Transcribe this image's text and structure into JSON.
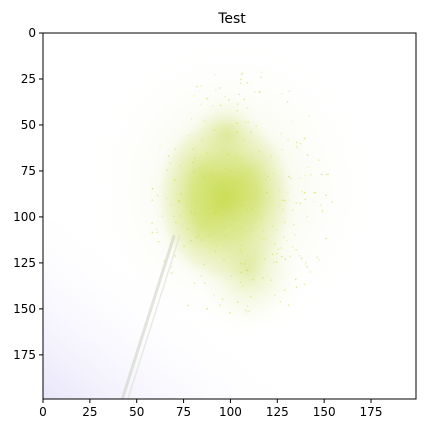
{
  "chart_data": {
    "type": "heatmap",
    "title": "Test",
    "xlabel": "",
    "ylabel": "",
    "image_width": 200,
    "image_height": 200,
    "xlim": [
      0,
      199
    ],
    "ylim": [
      199,
      0
    ],
    "y_inverted": true,
    "x_ticks": [
      0,
      25,
      50,
      75,
      100,
      125,
      150,
      175
    ],
    "y_ticks": [
      0,
      25,
      50,
      75,
      100,
      125,
      150,
      175
    ],
    "grid": false,
    "legend": "none",
    "colors": {
      "background": "#ffffff",
      "blob": "#c8dc4e",
      "corner_tint": "#ebe8fb",
      "streak": "#c9cfbf"
    },
    "features": [
      {
        "name": "yellow-green blob",
        "center": [
          97,
          90
        ],
        "extent_x": [
          60,
          160
        ],
        "extent_y": [
          20,
          175
        ]
      },
      {
        "name": "diagonal streak",
        "from": [
          70,
          110
        ],
        "to": [
          42,
          200
        ]
      },
      {
        "name": "lavender corner",
        "region": "bottom-left"
      }
    ]
  }
}
